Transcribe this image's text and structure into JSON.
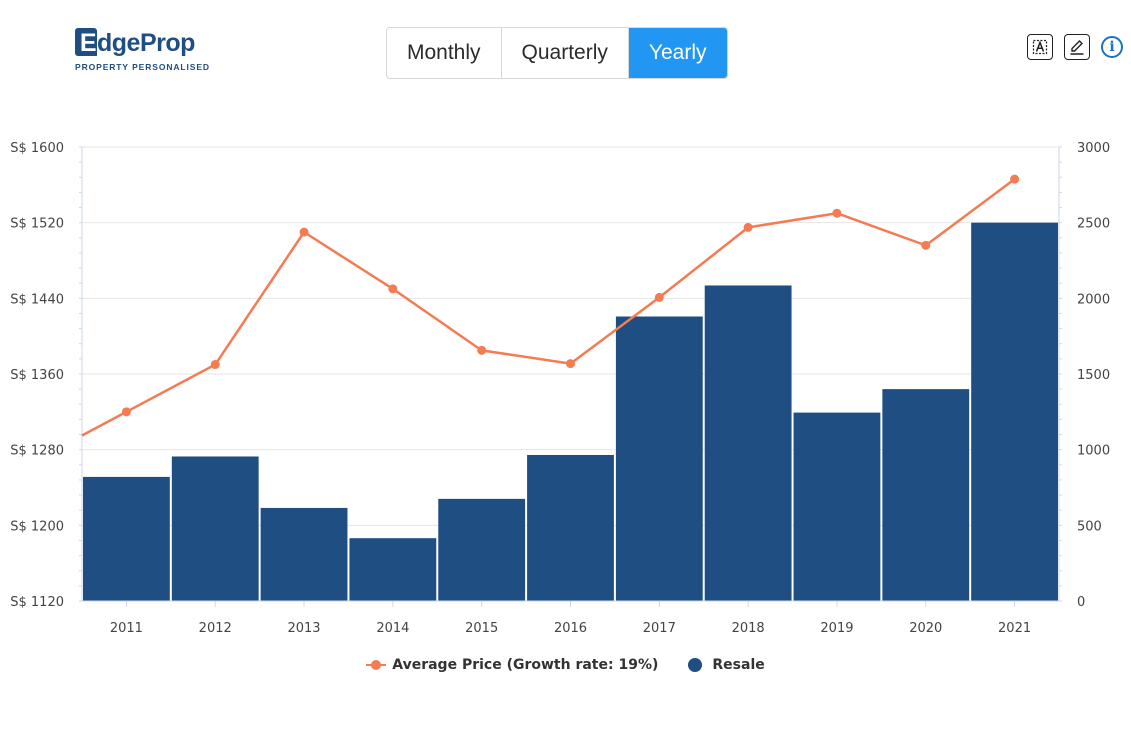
{
  "logo": {
    "first_letter": "E",
    "rest": "dgeProp",
    "tagline": "PROPERTY PERSONALISED"
  },
  "tabs": [
    {
      "label": "Monthly",
      "active": false
    },
    {
      "label": "Quarterly",
      "active": false
    },
    {
      "label": "Yearly",
      "active": true
    }
  ],
  "toolbar": {
    "icons": [
      "text-select-icon",
      "edit-pencil-icon",
      "info-icon"
    ],
    "info_glyph": "i"
  },
  "colors": {
    "accent": "#2196f3",
    "bar": "#1f4e82",
    "line": "#f47b52",
    "grid": "#e6e6e6"
  },
  "legend": {
    "line_label": "Average Price (Growth rate: 19%)",
    "bar_label": "Resale"
  },
  "chart_data": {
    "type": "bar+line",
    "categories": [
      "2011",
      "2012",
      "2013",
      "2014",
      "2015",
      "2016",
      "2017",
      "2018",
      "2019",
      "2020",
      "2021"
    ],
    "left_axis": {
      "ticks": [
        "S$ 1120",
        "S$ 1200",
        "S$ 1280",
        "S$ 1360",
        "S$ 1440",
        "S$ 1520",
        "S$ 1600"
      ],
      "min": 1120,
      "max": 1600
    },
    "right_axis": {
      "ticks": [
        "0",
        "500",
        "1000",
        "1500",
        "2000",
        "2500",
        "3000"
      ],
      "min": 0,
      "max": 3000
    },
    "series": [
      {
        "name": "Resale",
        "type": "bar",
        "axis": "right",
        "values": [
          820,
          955,
          615,
          415,
          675,
          965,
          1880,
          2085,
          1245,
          1400,
          2500
        ]
      },
      {
        "name": "Average Price (Growth rate: 19%)",
        "type": "line",
        "axis": "left",
        "values": [
          1320,
          1370,
          1510,
          1450,
          1385,
          1371,
          1441,
          1515,
          1530,
          1496,
          1566
        ]
      }
    ],
    "grid": true,
    "legend_position": "bottom"
  }
}
